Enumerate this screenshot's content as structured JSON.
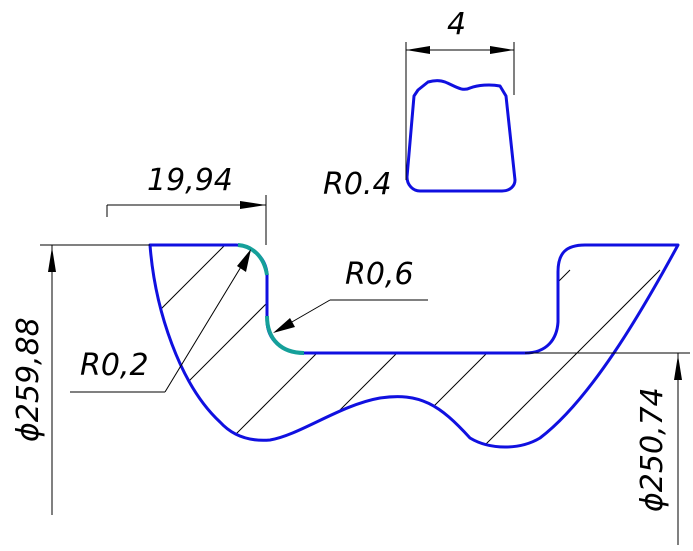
{
  "colors": {
    "background": "#ffffff",
    "profile": "#1010e0",
    "radius_highlight": "#15a09a",
    "dimension": "#000000",
    "hatch": "#000000"
  },
  "dimensions": {
    "width_4": "4",
    "offset_19_94": "19,94",
    "radius_04": "R0.4",
    "radius_06": "R0,6",
    "radius_02": "R0,2",
    "diameter_259_88": "ϕ259,88",
    "diameter_250_74": "ϕ250,74"
  }
}
